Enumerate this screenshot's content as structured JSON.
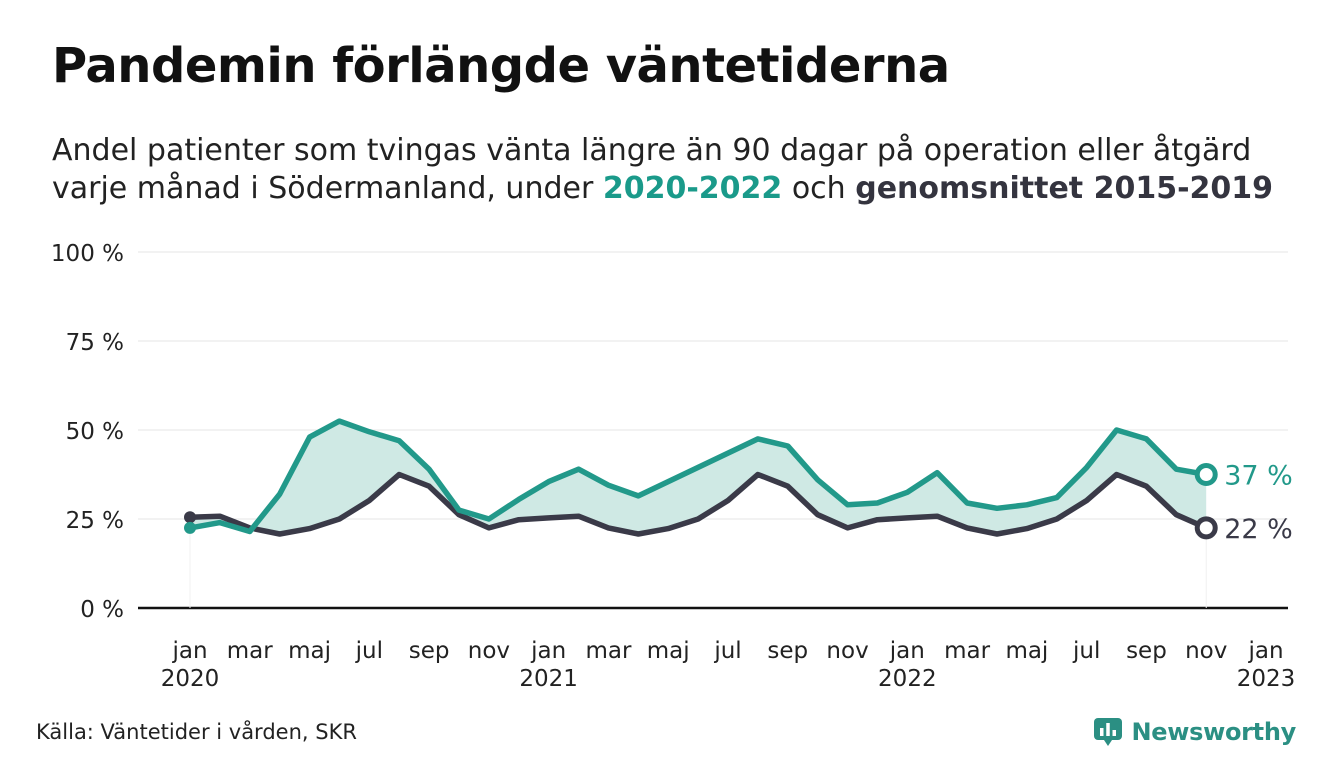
{
  "header": {
    "title": "Pandemin förlängde väntetiderna",
    "subtitle_line1": "Andel patienter som tvingas vänta längre än 90 dagar på operation eller åtgärd",
    "subtitle_line2_prefix": "varje månad i Södermanland, under ",
    "subtitle_highlight1": "2020-2022",
    "subtitle_mid": " och ",
    "subtitle_highlight2": "genomsnittet 2015-2019"
  },
  "footer": {
    "source": "Källa: Väntetider i vården, SKR",
    "brand": "Newsworthy"
  },
  "colors": {
    "series_current": "#22998a",
    "series_average": "#3a3a48",
    "band_fill": "#cfe9e4",
    "grid": "#e6e6e6",
    "axis": "#111111"
  },
  "chart_data": {
    "type": "line",
    "title": "Pandemin förlängde väntetiderna",
    "ylim": [
      0,
      100
    ],
    "y_ticks": [
      {
        "value": 0,
        "label": "0 %"
      },
      {
        "value": 25,
        "label": "25 %"
      },
      {
        "value": 50,
        "label": "50 %"
      },
      {
        "value": 75,
        "label": "75 %"
      },
      {
        "value": 100,
        "label": "100 %"
      }
    ],
    "x_ticks": [
      {
        "index": 0,
        "label": "jan",
        "year": "2020"
      },
      {
        "index": 2,
        "label": "mar"
      },
      {
        "index": 4,
        "label": "maj"
      },
      {
        "index": 6,
        "label": "jul"
      },
      {
        "index": 8,
        "label": "sep"
      },
      {
        "index": 10,
        "label": "nov"
      },
      {
        "index": 12,
        "label": "jan",
        "year": "2021"
      },
      {
        "index": 14,
        "label": "mar"
      },
      {
        "index": 16,
        "label": "maj"
      },
      {
        "index": 18,
        "label": "jul"
      },
      {
        "index": 20,
        "label": "sep"
      },
      {
        "index": 22,
        "label": "nov"
      },
      {
        "index": 24,
        "label": "jan",
        "year": "2022"
      },
      {
        "index": 26,
        "label": "mar"
      },
      {
        "index": 28,
        "label": "maj"
      },
      {
        "index": 30,
        "label": "jul"
      },
      {
        "index": 32,
        "label": "sep"
      },
      {
        "index": 34,
        "label": "nov"
      },
      {
        "index": 36,
        "label": "jan",
        "year": "2023"
      }
    ],
    "x_count": 37,
    "series": [
      {
        "name": "2020-2022",
        "values": [
          22.5,
          24,
          21.5,
          32,
          48,
          52.5,
          49.5,
          47,
          39,
          27.5,
          25,
          30.5,
          35.5,
          39,
          34.5,
          31.5,
          35.5,
          39.5,
          43.5,
          47.5,
          45.5,
          36,
          29,
          29.5,
          32.5,
          38,
          29.5,
          28,
          29,
          31,
          39.5,
          50,
          47.5,
          39,
          37.5
        ],
        "end_label": "37 %"
      },
      {
        "name": "genomsnittet 2015-2019",
        "values": [
          25.5,
          25.8,
          22.5,
          20.8,
          22.3,
          25,
          30.2,
          37.5,
          34.2,
          26.2,
          22.5,
          24.8,
          25.3,
          25.8,
          22.5,
          20.8,
          22.3,
          25,
          30.2,
          37.5,
          34.2,
          26.2,
          22.5,
          24.8,
          25.3,
          25.8,
          22.5,
          20.8,
          22.3,
          25,
          30.2,
          37.5,
          34.2,
          26.2,
          22.5
        ],
        "end_label": "22 %"
      }
    ]
  }
}
